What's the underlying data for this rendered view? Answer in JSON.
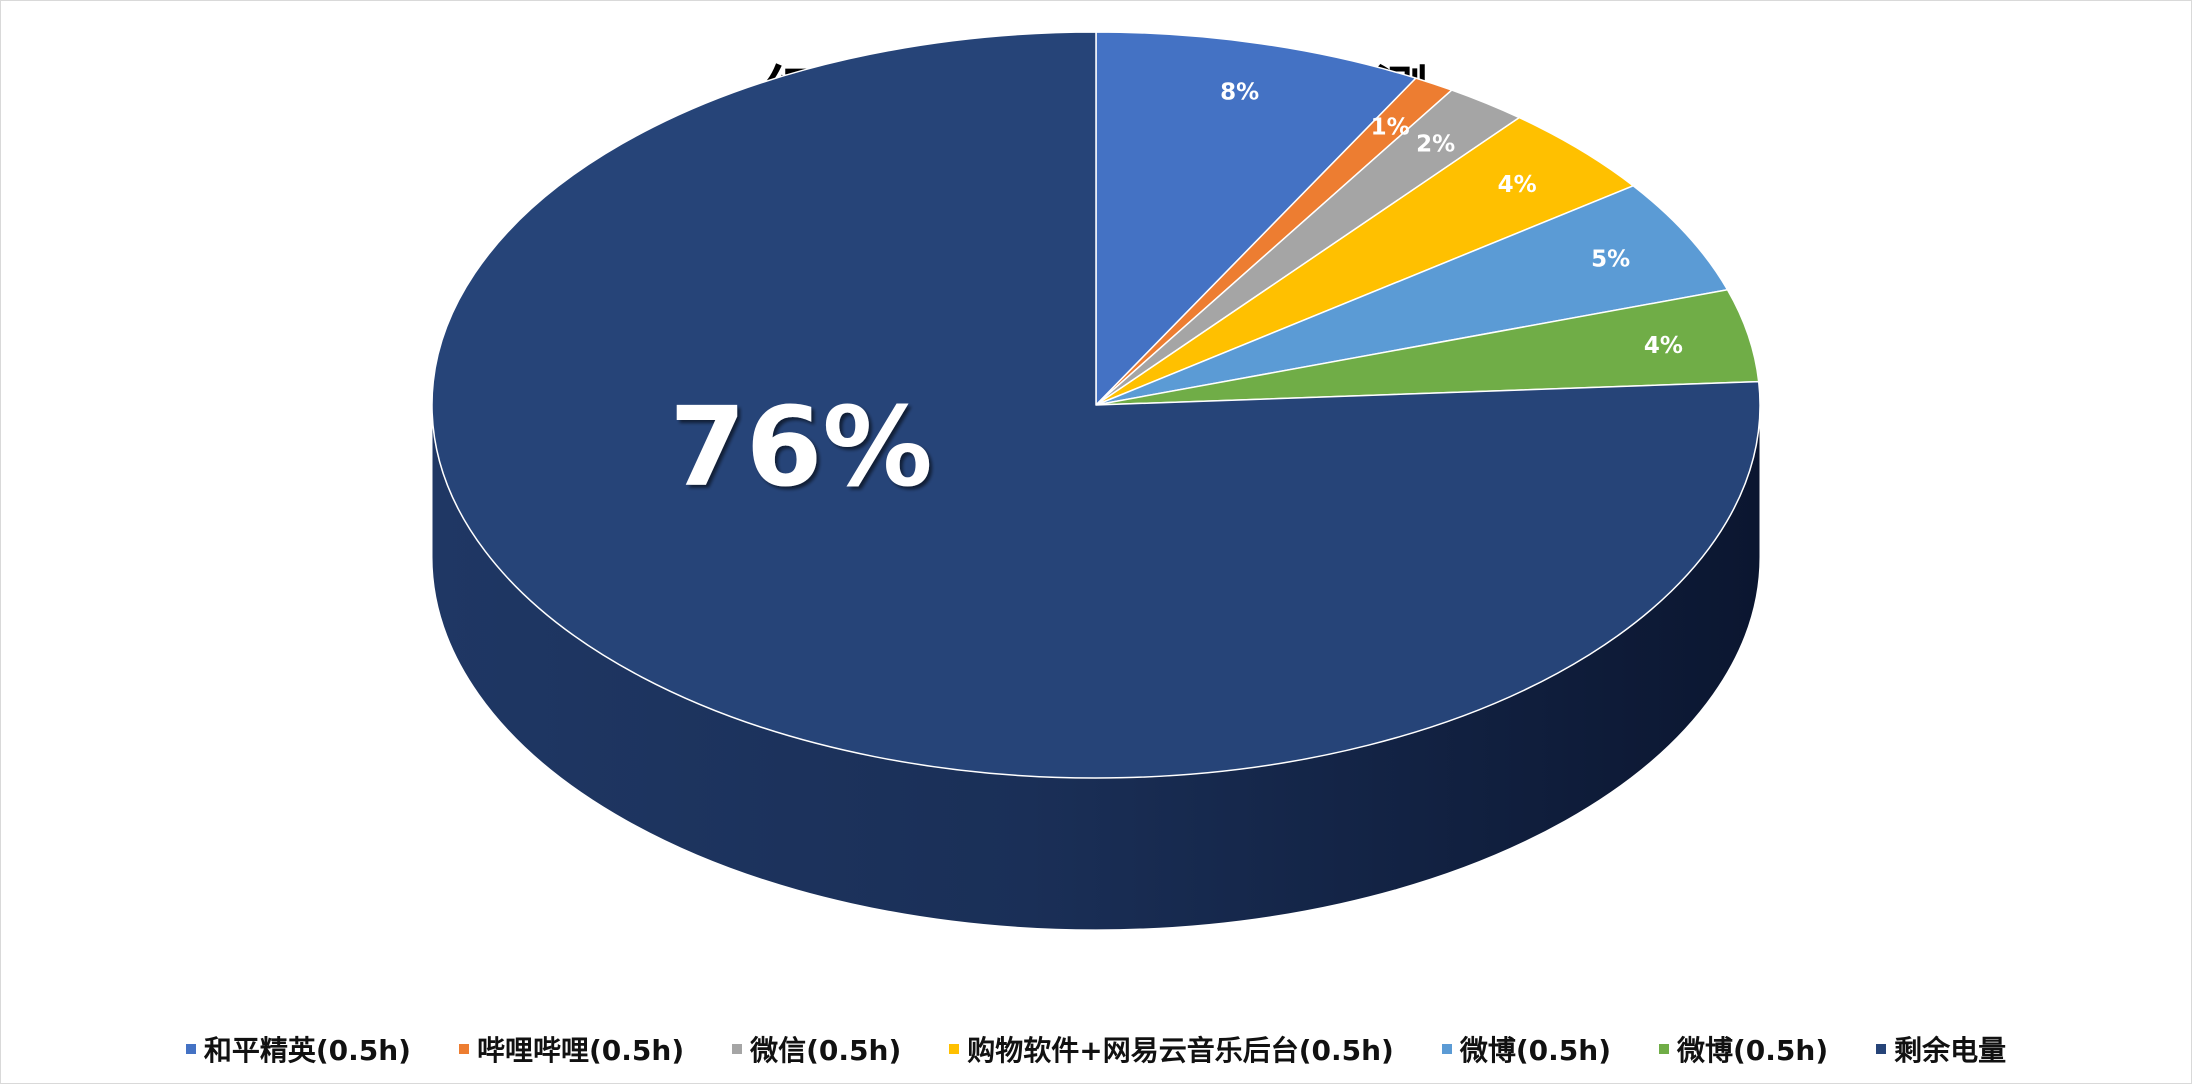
{
  "chart_data": {
    "type": "pie",
    "style": "3d",
    "title": "红魔11Air 3小时续航实测",
    "slices": [
      {
        "label": "和平精英(0.5h)",
        "value": 8,
        "data_label": "8%",
        "color": "#4472C4"
      },
      {
        "label": "哔哩哔哩(0.5h)",
        "value": 1,
        "data_label": "1%",
        "color": "#ED7D31"
      },
      {
        "label": "微信(0.5h)",
        "value": 2,
        "data_label": "2%",
        "color": "#A5A5A5"
      },
      {
        "label": "购物软件+网易云音乐后台(0.5h)",
        "value": 4,
        "data_label": "4%",
        "color": "#FFC000"
      },
      {
        "label": "微博(0.5h)",
        "value": 5,
        "data_label": "5%",
        "color": "#5B9BD5"
      },
      {
        "label": "微博(0.5h)",
        "value": 4,
        "data_label": "4%",
        "color": "#70AD47"
      },
      {
        "label": "剩余电量",
        "value": 76,
        "data_label": "76%",
        "color": "#264478"
      }
    ],
    "legend_position": "bottom"
  }
}
